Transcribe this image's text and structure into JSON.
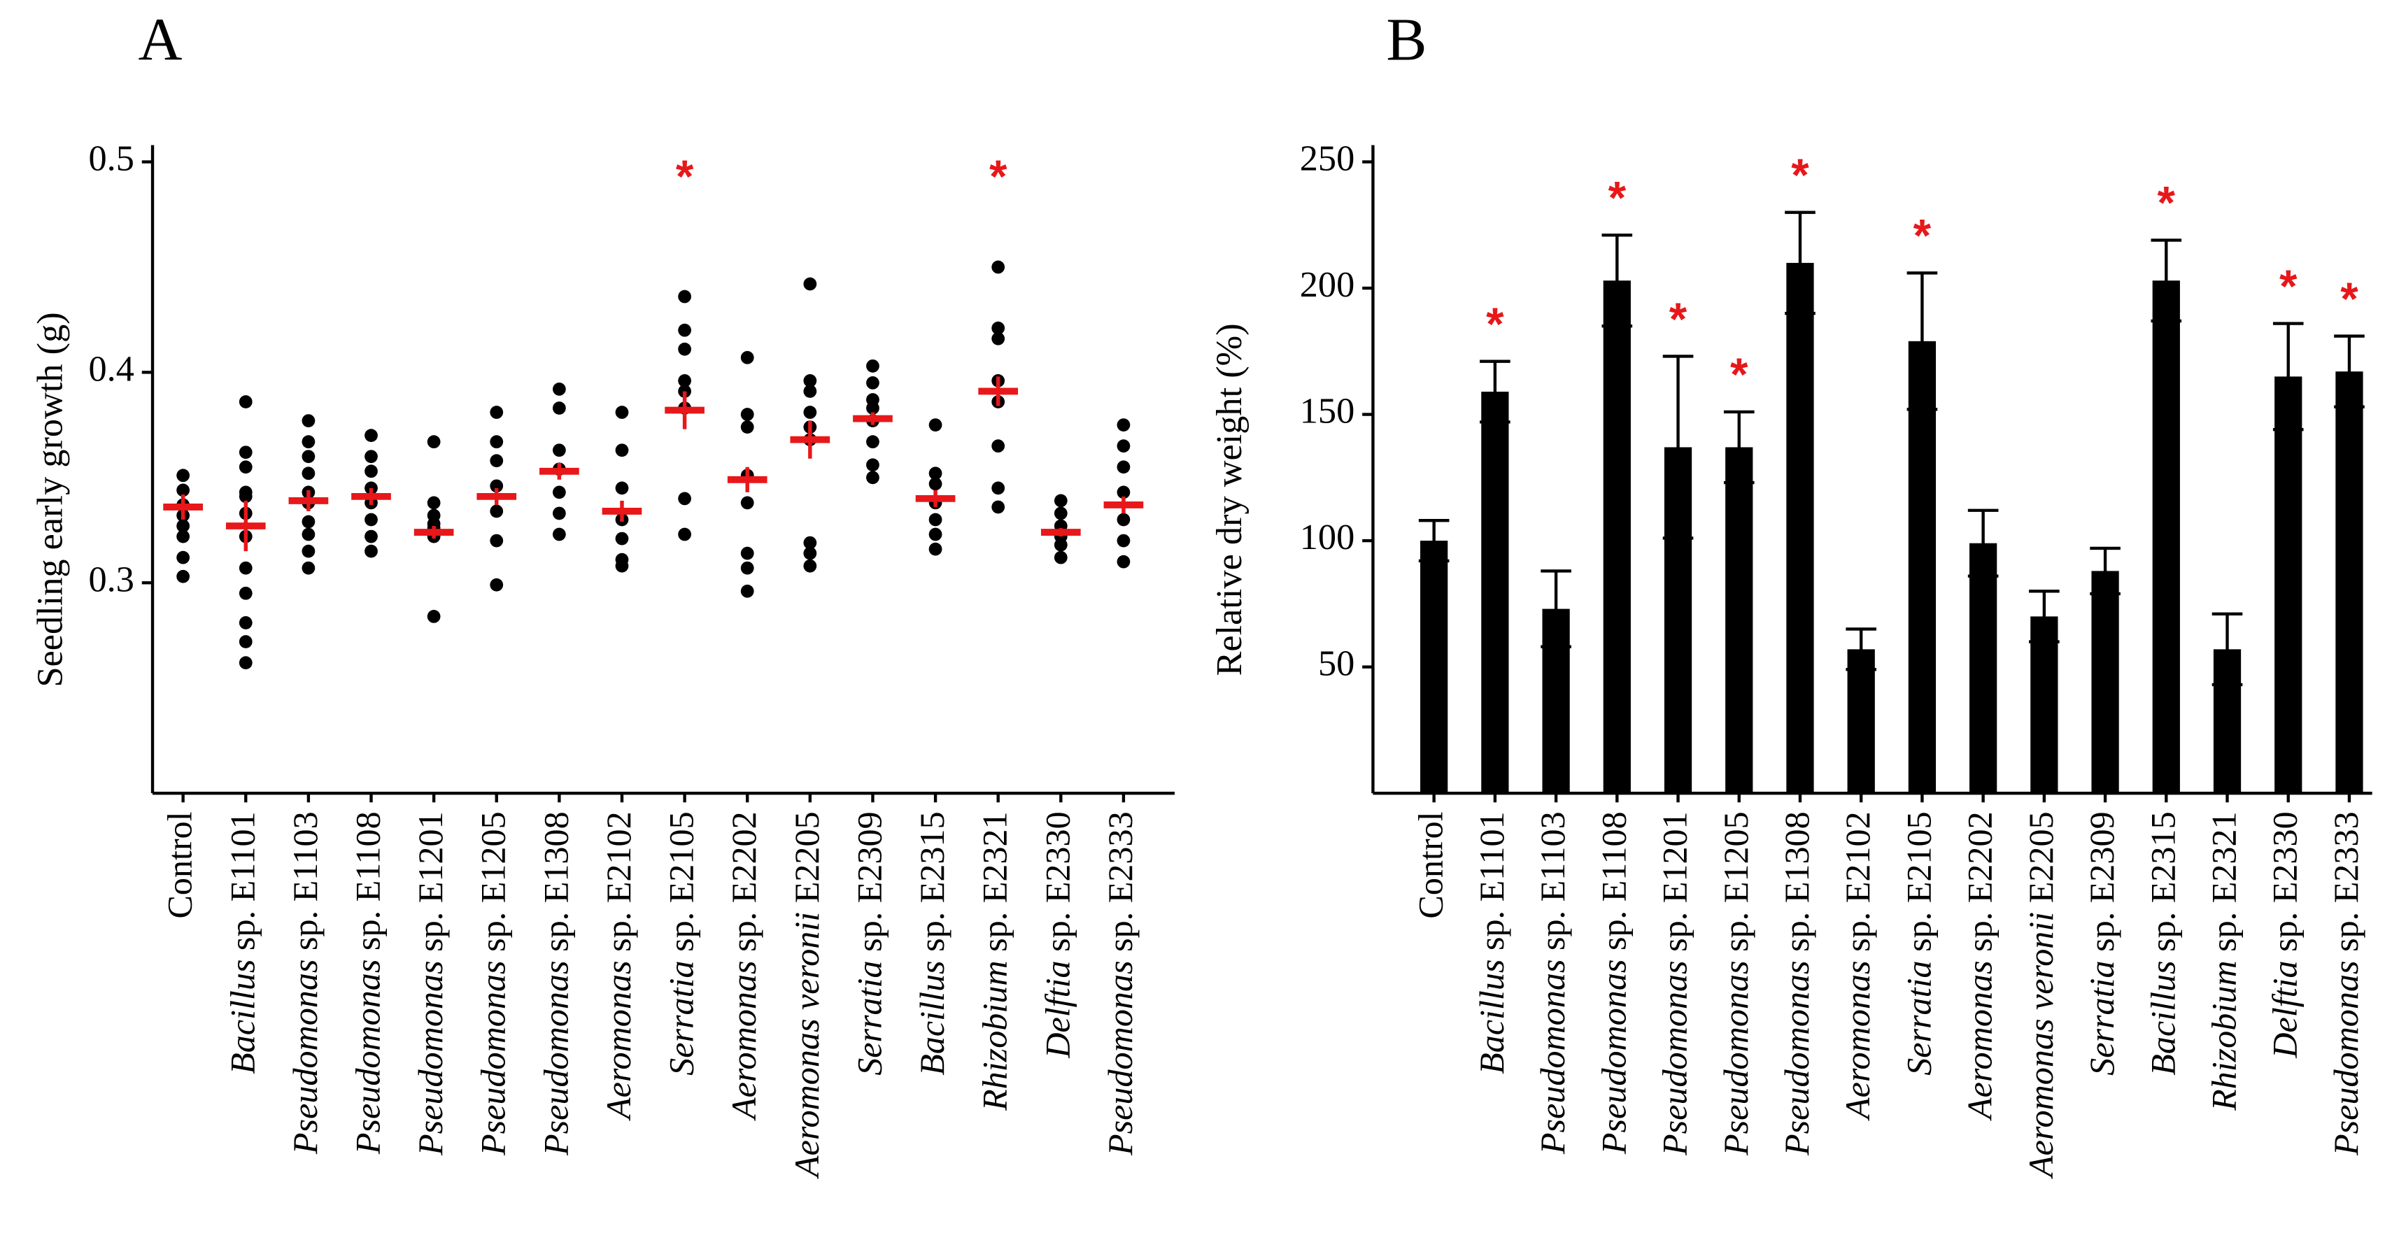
{
  "chart_data": [
    {
      "type": "dot",
      "title": "A",
      "ylabel": "Seedling early growth (g)",
      "categories": [
        "Control",
        "Bacillus sp. E1101",
        "Pseudomonas sp. E1103",
        "Pseudomonas sp. E1108",
        "Pseudomonas sp. E1201",
        "Pseudomonas sp. E1205",
        "Pseudomonas sp. E1308",
        "Aeromonas sp. E2102",
        "Serratia sp. E2105",
        "Aeromonas sp. E2202",
        "Aeromonas veronii E2205",
        "Serratia sp. E2309",
        "Bacillus sp. E2315",
        "Rhizobium sp. E2321",
        "Delftia sp. E2330",
        "Pseudomonas sp. E2333"
      ],
      "points": [
        [
          0.351,
          0.344,
          0.337,
          0.332,
          0.327,
          0.322,
          0.312,
          0.303
        ],
        [
          0.386,
          0.362,
          0.355,
          0.343,
          0.341,
          0.333,
          0.322,
          0.307,
          0.295,
          0.281,
          0.272,
          0.262
        ],
        [
          0.377,
          0.367,
          0.36,
          0.352,
          0.343,
          0.338,
          0.329,
          0.323,
          0.315,
          0.307
        ],
        [
          0.37,
          0.36,
          0.353,
          0.345,
          0.338,
          0.33,
          0.322,
          0.315
        ],
        [
          0.367,
          0.338,
          0.332,
          0.328,
          0.326,
          0.322,
          0.284
        ],
        [
          0.381,
          0.367,
          0.358,
          0.346,
          0.334,
          0.32,
          0.299
        ],
        [
          0.392,
          0.383,
          0.363,
          0.354,
          0.343,
          0.333,
          0.323
        ],
        [
          0.381,
          0.363,
          0.345,
          0.33,
          0.321,
          0.311,
          0.308
        ],
        [
          0.436,
          0.42,
          0.411,
          0.396,
          0.391,
          0.383,
          0.34,
          0.323
        ],
        [
          0.407,
          0.38,
          0.374,
          0.351,
          0.338,
          0.314,
          0.307,
          0.296
        ],
        [
          0.442,
          0.396,
          0.391,
          0.381,
          0.374,
          0.368,
          0.319,
          0.314,
          0.308
        ],
        [
          0.403,
          0.395,
          0.387,
          0.383,
          0.377,
          0.367,
          0.356,
          0.35
        ],
        [
          0.375,
          0.352,
          0.347,
          0.338,
          0.33,
          0.323,
          0.316
        ],
        [
          0.45,
          0.421,
          0.416,
          0.396,
          0.386,
          0.365,
          0.345,
          0.336
        ],
        [
          0.339,
          0.333,
          0.327,
          0.322,
          0.318,
          0.312
        ],
        [
          0.375,
          0.365,
          0.355,
          0.343,
          0.33,
          0.32,
          0.31
        ]
      ],
      "means": [
        0.336,
        0.327,
        0.339,
        0.341,
        0.324,
        0.341,
        0.353,
        0.334,
        0.382,
        0.349,
        0.368,
        0.378,
        0.34,
        0.391,
        0.324,
        0.337
      ],
      "errors": [
        0.006,
        0.012,
        0.005,
        0.004,
        0.003,
        0.004,
        0.004,
        0.005,
        0.009,
        0.006,
        0.009,
        0.003,
        0.004,
        0.007,
        0.002,
        0.004
      ],
      "significance": [
        null,
        null,
        null,
        null,
        null,
        null,
        null,
        null,
        "*",
        null,
        null,
        null,
        null,
        "*",
        null,
        null
      ],
      "ylim": [
        0.2,
        0.5
      ],
      "yticks": [
        0.3,
        0.4,
        0.5
      ],
      "point_color": "#000000",
      "mean_color": "#e8171a",
      "significance_color": "#e8171a"
    },
    {
      "type": "bar",
      "title": "B",
      "ylabel": "Relative dry weight (%)",
      "categories": [
        "Control",
        "Bacillus sp. E1101",
        "Pseudomonas sp. E1103",
        "Pseudomonas sp. E1108",
        "Pseudomonas sp. E1201",
        "Pseudomonas sp. E1205",
        "Pseudomonas sp. E1308",
        "Aeromonas sp. E2102",
        "Serratia sp. E2105",
        "Aeromonas sp. E2202",
        "Aeromonas veronii E2205",
        "Serratia sp. E2309",
        "Bacillus sp. E2315",
        "Rhizobium sp. E2321",
        "Delftia sp. E2330",
        "Pseudomonas sp. E2333"
      ],
      "values": [
        100,
        159,
        73,
        203,
        137,
        137,
        210,
        57,
        179,
        99,
        70,
        88,
        203,
        57,
        165,
        167
      ],
      "errors": [
        8,
        12,
        15,
        18,
        36,
        14,
        20,
        8,
        27,
        13,
        10,
        9,
        16,
        14,
        21,
        14
      ],
      "significance": [
        null,
        "*",
        null,
        "*",
        "*",
        "*",
        "*",
        null,
        "*",
        null,
        null,
        null,
        "*",
        null,
        "*",
        "*"
      ],
      "ylim": [
        0,
        250
      ],
      "yticks": [
        50,
        100,
        150,
        200,
        250
      ],
      "color": "#000000",
      "significance_color": "#e8171a"
    }
  ]
}
